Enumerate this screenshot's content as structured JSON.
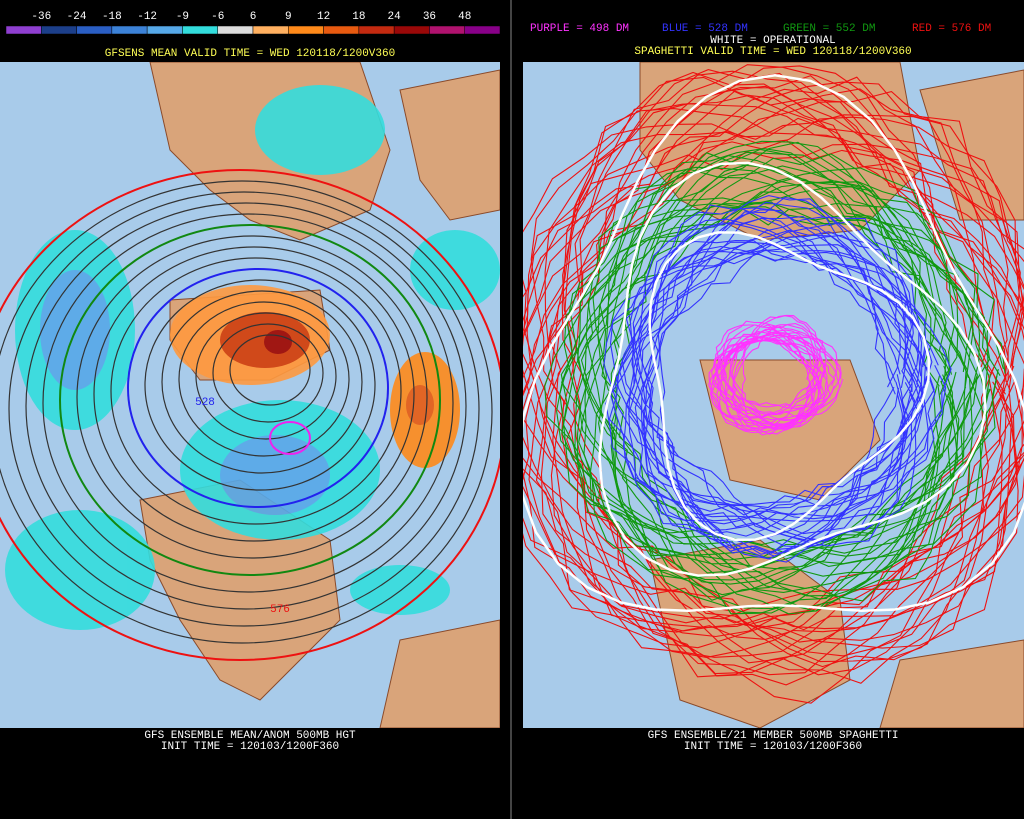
{
  "left": {
    "colorbar": {
      "labels": [
        "-36",
        "-24",
        "-18",
        "-12",
        "-9",
        "-6",
        "6",
        "9",
        "12",
        "18",
        "24",
        "36",
        "48"
      ],
      "colors": [
        "#8f3fd0",
        "#1c3f8a",
        "#2a5ec4",
        "#3c82d8",
        "#56a8e8",
        "#33dddd",
        "#dcdcdc",
        "#ffb060",
        "#ff8a1a",
        "#e85a10",
        "#c42a10",
        "#9a0808",
        "#b0126e",
        "#880088"
      ]
    },
    "header": "GFSENS MEAN VALID TIME = WED 120118/1200V360",
    "contour_labels": [
      "528",
      "576"
    ],
    "footer": [
      "GFS ENSEMBLE MEAN/ANOM 500MB HGT",
      "INIT TIME = 120103/1200F360"
    ]
  },
  "right": {
    "legend": [
      {
        "text": "PURPLE = 498 DM",
        "color": "#ff33ff"
      },
      {
        "text": "BLUE = 528 DM",
        "color": "#3333ff"
      },
      {
        "text": "GREEN = 552 DM",
        "color": "#119911"
      },
      {
        "text": "RED = 576 DM",
        "color": "#ee1111"
      }
    ],
    "operational": "WHITE = OPERATIONAL",
    "header": "SPAGHETTI VALID TIME = WED 120118/1200V360",
    "footer": [
      "GFS ENSEMBLE/21 MEMBER 500MB SPAGHETTI",
      "INIT TIME = 120103/1200F360"
    ]
  }
}
